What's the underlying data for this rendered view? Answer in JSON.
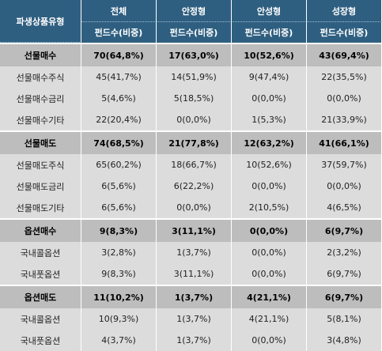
{
  "header": {
    "type_col": "파생상품유형",
    "columns": [
      {
        "name": "전체",
        "sub": "펀드수(비중)"
      },
      {
        "name": "안정형",
        "sub": "펀드수(비중)"
      },
      {
        "name": "안성형",
        "sub": "펀드수(비중)"
      },
      {
        "name": "성장형",
        "sub": "펀드수(비중)"
      }
    ]
  },
  "groups": [
    {
      "label": "선물매수",
      "values": [
        "70(64,8%)",
        "17(63,0%)",
        "10(52,6%)",
        "43(69,4%)"
      ],
      "rows": [
        {
          "label": "선물매수주식",
          "values": [
            "45(41,7%)",
            "14(51,9%)",
            "9(47,4%)",
            "22(35,5%)"
          ]
        },
        {
          "label": "선물매수금리",
          "values": [
            "5(4,6%)",
            "5(18,5%)",
            "0(0,0%)",
            "0(0,0%)"
          ]
        },
        {
          "label": "선물매수기타",
          "values": [
            "22(20,4%)",
            "0(0,0%)",
            "1(5,3%)",
            "21(33,9%)"
          ]
        }
      ]
    },
    {
      "label": "선물매도",
      "values": [
        "74(68,5%)",
        "21(77,8%)",
        "12(63,2%)",
        "41(66,1%)"
      ],
      "rows": [
        {
          "label": "선물매도주식",
          "values": [
            "65(60,2%)",
            "18(66,7%)",
            "10(52,6%)",
            "37(59,7%)"
          ]
        },
        {
          "label": "선물매도금리",
          "values": [
            "6(5,6%)",
            "6(22,2%)",
            "0(0,0%)",
            "0(0,0%)"
          ]
        },
        {
          "label": "선물매도기타",
          "values": [
            "6(5,6%)",
            "0(0,0%)",
            "2(10,5%)",
            "4(6,5%)"
          ]
        }
      ]
    },
    {
      "label": "옵션매수",
      "values": [
        "9(8,3%)",
        "3(11,1%)",
        "0(0,0%)",
        "6(9,7%)"
      ],
      "rows": [
        {
          "label": "국내콜옵션",
          "values": [
            "3(2,8%)",
            "1(3,7%)",
            "0(0,0%)",
            "2(3,2%)"
          ]
        },
        {
          "label": "국내풋옵션",
          "values": [
            "9(8,3%)",
            "3(11,1%)",
            "0(0,0%)",
            "6(9,7%)"
          ]
        }
      ]
    },
    {
      "label": "옵션매도",
      "values": [
        "11(10,2%)",
        "1(3,7%)",
        "4(21,1%)",
        "6(9,7%)"
      ],
      "rows": [
        {
          "label": "국내콜옵션",
          "values": [
            "10(9,3%)",
            "1(3,7%)",
            "4(21,1%)",
            "5(8,1%)"
          ]
        },
        {
          "label": "국내풋옵션",
          "values": [
            "4(3,7%)",
            "1(3,7%)",
            "0(0,0%)",
            "3(4,8%)"
          ]
        }
      ]
    }
  ]
}
